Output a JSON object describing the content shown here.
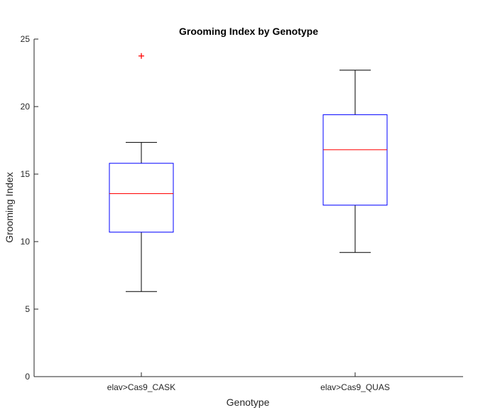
{
  "chart_data": {
    "type": "boxplot",
    "title": "Grooming Index by Genotype",
    "xlabel": "Genotype",
    "ylabel": "Grooming Index",
    "ylim": [
      0,
      25
    ],
    "yticks": [
      0,
      5,
      10,
      15,
      20,
      25
    ],
    "categories": [
      "elav>Cas9_CASK",
      "elav>Cas9_QUAS"
    ],
    "boxes": [
      {
        "category": "elav>Cas9_CASK",
        "whisker_low": 6.3,
        "q1": 10.7,
        "median": 13.55,
        "q3": 15.8,
        "whisker_high": 17.35,
        "outliers": [
          23.75
        ]
      },
      {
        "category": "elav>Cas9_QUAS",
        "whisker_low": 9.2,
        "q1": 12.7,
        "median": 16.8,
        "q3": 19.4,
        "whisker_high": 22.7,
        "outliers": []
      }
    ],
    "colors": {
      "box": "#0000ff",
      "median": "#ff0000",
      "whisker": "#000000",
      "outlier": "#ff0000",
      "axis": "#262626"
    },
    "grid": false,
    "legend": "none"
  }
}
